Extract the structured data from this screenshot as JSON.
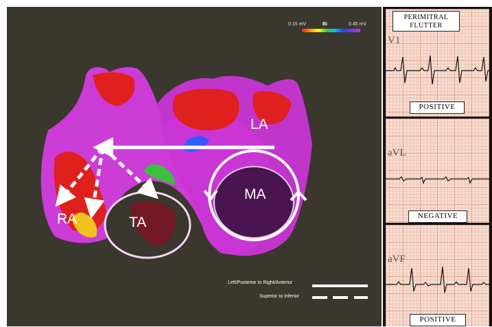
{
  "map": {
    "scale_min": "0.15 mV",
    "scale_mode": "Bi",
    "scale_max": "0.45 mV",
    "labels": {
      "ra": "RA",
      "ta": "TA",
      "ma": "MA",
      "la": "LA"
    },
    "legend": {
      "solid_label": "Left/Posterior to Right/Anterior",
      "dashed_label": "Superior to Inferior"
    }
  },
  "ecg": {
    "title_line1": "PERIMITRAL",
    "title_line2": "FLUTTER",
    "leads": [
      {
        "name": "V1",
        "polarity": "POSITIVE"
      },
      {
        "name": "aVL",
        "polarity": "NEGATIVE"
      },
      {
        "name": "aVF",
        "polarity": "POSITIVE"
      }
    ]
  },
  "colors": {
    "background": "#3a372e",
    "tissue_magenta": "#d43ce0",
    "tissue_red": "#e0201e",
    "arrow": "#ffffff"
  }
}
